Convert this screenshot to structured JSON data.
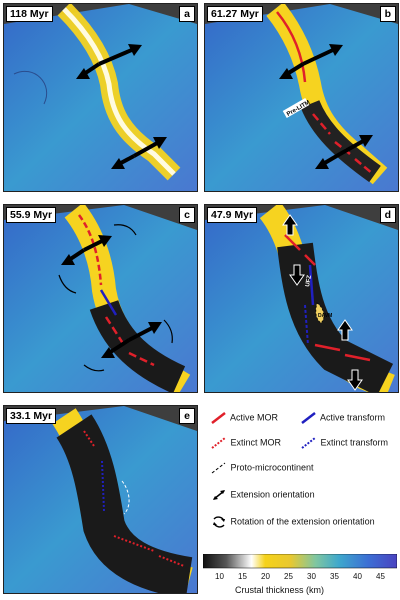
{
  "panels": [
    {
      "id": "a",
      "age": "118 Myr",
      "letter": "a"
    },
    {
      "id": "b",
      "age": "61.27 Myr",
      "letter": "b"
    },
    {
      "id": "c",
      "age": "55.9 Myr",
      "letter": "c"
    },
    {
      "id": "d",
      "age": "47.9 Myr",
      "letter": "d"
    },
    {
      "id": "e",
      "age": "33.1 Myr",
      "letter": "e"
    }
  ],
  "map_labels": {
    "b": "Pre-LITM",
    "d1": "UFZ",
    "d2": "DAVM"
  },
  "legend": {
    "active_mor": "Active MOR",
    "active_transform": "Active transform",
    "extinct_mor": "Extinct MOR",
    "extinct_transform": "Extinct transform",
    "proto_microcontinent": "Proto-microcontinent",
    "extension_orientation": "Extension orientation",
    "rotation": "Rotation of the extension orientation"
  },
  "colorbar": {
    "title": "Crustal thickness (km)",
    "ticks": [
      "10",
      "15",
      "20",
      "25",
      "30",
      "35",
      "40",
      "45"
    ],
    "colors": [
      "#111111",
      "#777777",
      "#ffffff",
      "#f5d21a",
      "#e8c830",
      "#80c6a0",
      "#3fa8cc",
      "#3c6fd4",
      "#4a43c0"
    ]
  },
  "colors": {
    "active_mor": "#e0202a",
    "active_transform": "#2020c0",
    "extinct_mor": "#e0202a",
    "extinct_transform": "#2020c0"
  }
}
